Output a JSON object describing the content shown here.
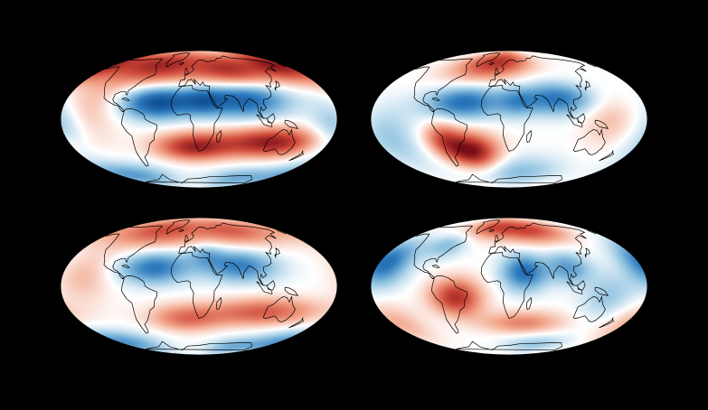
{
  "figure": {
    "background": "#000000",
    "colormap": [
      "#0b4a8f",
      "#2f7cbf",
      "#8fc2e0",
      "#ffffff",
      "#f2a489",
      "#cf4a3a",
      "#7a0c16"
    ],
    "coastline_color": "#000000",
    "projection": "mollweide"
  },
  "panels": [
    {
      "name": "map-panel-top-left",
      "longitude_shift": 20,
      "blobs": [
        {
          "lon": -60,
          "lat": 62,
          "a": 95,
          "b": 22,
          "v": 0.85
        },
        {
          "lon": 80,
          "lat": 55,
          "a": 70,
          "b": 22,
          "v": 0.75
        },
        {
          "lon": 175,
          "lat": 62,
          "a": 55,
          "b": 20,
          "v": 0.7
        },
        {
          "lon": -35,
          "lat": 18,
          "a": 55,
          "b": 16,
          "v": -0.95
        },
        {
          "lon": 80,
          "lat": 22,
          "a": 70,
          "b": 18,
          "v": -0.9
        },
        {
          "lon": 25,
          "lat": 20,
          "a": 35,
          "b": 14,
          "v": -0.45
        },
        {
          "lon": -160,
          "lat": -10,
          "a": 40,
          "b": 28,
          "v": -0.45
        },
        {
          "lon": 120,
          "lat": -25,
          "a": 85,
          "b": 15,
          "v": 0.9
        },
        {
          "lon": 10,
          "lat": -30,
          "a": 60,
          "b": 14,
          "v": 0.8
        },
        {
          "lon": -130,
          "lat": 10,
          "a": 45,
          "b": 30,
          "v": 0.3
        },
        {
          "lon": -120,
          "lat": -65,
          "a": 80,
          "b": 15,
          "v": -0.5
        },
        {
          "lon": 110,
          "lat": -70,
          "a": 70,
          "b": 14,
          "v": -0.4
        }
      ]
    },
    {
      "name": "map-panel-top-right",
      "longitude_shift": 20,
      "blobs": [
        {
          "lon": -30,
          "lat": 62,
          "a": 70,
          "b": 20,
          "v": 0.55
        },
        {
          "lon": 20,
          "lat": 70,
          "a": 60,
          "b": 16,
          "v": 0.4
        },
        {
          "lon": -40,
          "lat": 18,
          "a": 60,
          "b": 16,
          "v": -0.75
        },
        {
          "lon": 85,
          "lat": 22,
          "a": 60,
          "b": 16,
          "v": -0.7
        },
        {
          "lon": 30,
          "lat": 18,
          "a": 30,
          "b": 14,
          "v": -0.35
        },
        {
          "lon": -35,
          "lat": -35,
          "a": 45,
          "b": 18,
          "v": 1.0
        },
        {
          "lon": -70,
          "lat": -20,
          "a": 30,
          "b": 16,
          "v": 0.5
        },
        {
          "lon": 150,
          "lat": 0,
          "a": 40,
          "b": 25,
          "v": 0.25
        },
        {
          "lon": -140,
          "lat": -20,
          "a": 45,
          "b": 30,
          "v": -0.3
        },
        {
          "lon": 40,
          "lat": -60,
          "a": 80,
          "b": 18,
          "v": -0.35
        }
      ]
    },
    {
      "name": "map-panel-bottom-left",
      "longitude_shift": 20,
      "blobs": [
        {
          "lon": -60,
          "lat": 65,
          "a": 100,
          "b": 20,
          "v": 0.65
        },
        {
          "lon": 100,
          "lat": 65,
          "a": 80,
          "b": 18,
          "v": 0.55
        },
        {
          "lon": -40,
          "lat": 20,
          "a": 55,
          "b": 16,
          "v": -0.7
        },
        {
          "lon": 75,
          "lat": 22,
          "a": 60,
          "b": 16,
          "v": -0.65
        },
        {
          "lon": 30,
          "lat": 35,
          "a": 30,
          "b": 12,
          "v": -0.3
        },
        {
          "lon": 110,
          "lat": -28,
          "a": 90,
          "b": 14,
          "v": 0.6
        },
        {
          "lon": 0,
          "lat": -35,
          "a": 60,
          "b": 14,
          "v": 0.5
        },
        {
          "lon": -130,
          "lat": 10,
          "a": 40,
          "b": 25,
          "v": 0.25
        },
        {
          "lon": -150,
          "lat": -65,
          "a": 80,
          "b": 15,
          "v": -0.55
        },
        {
          "lon": 100,
          "lat": -72,
          "a": 60,
          "b": 12,
          "v": -0.35
        }
      ]
    },
    {
      "name": "map-panel-bottom-right",
      "longitude_shift": 20,
      "blobs": [
        {
          "lon": -20,
          "lat": 70,
          "a": 60,
          "b": 14,
          "v": 0.55
        },
        {
          "lon": 70,
          "lat": 65,
          "a": 70,
          "b": 16,
          "v": 0.65
        },
        {
          "lon": -150,
          "lat": 25,
          "a": 40,
          "b": 22,
          "v": -0.75
        },
        {
          "lon": -80,
          "lat": 45,
          "a": 35,
          "b": 14,
          "v": -0.35
        },
        {
          "lon": 40,
          "lat": 15,
          "a": 35,
          "b": 18,
          "v": -0.75
        },
        {
          "lon": 100,
          "lat": 20,
          "a": 35,
          "b": 16,
          "v": -0.5
        },
        {
          "lon": -50,
          "lat": -12,
          "a": 40,
          "b": 18,
          "v": 0.8
        },
        {
          "lon": 40,
          "lat": -40,
          "a": 70,
          "b": 12,
          "v": 0.45
        },
        {
          "lon": 150,
          "lat": -10,
          "a": 40,
          "b": 22,
          "v": -0.3
        },
        {
          "lon": -150,
          "lat": -40,
          "a": 45,
          "b": 20,
          "v": 0.3
        },
        {
          "lon": 80,
          "lat": -68,
          "a": 70,
          "b": 12,
          "v": -0.3
        }
      ]
    }
  ]
}
